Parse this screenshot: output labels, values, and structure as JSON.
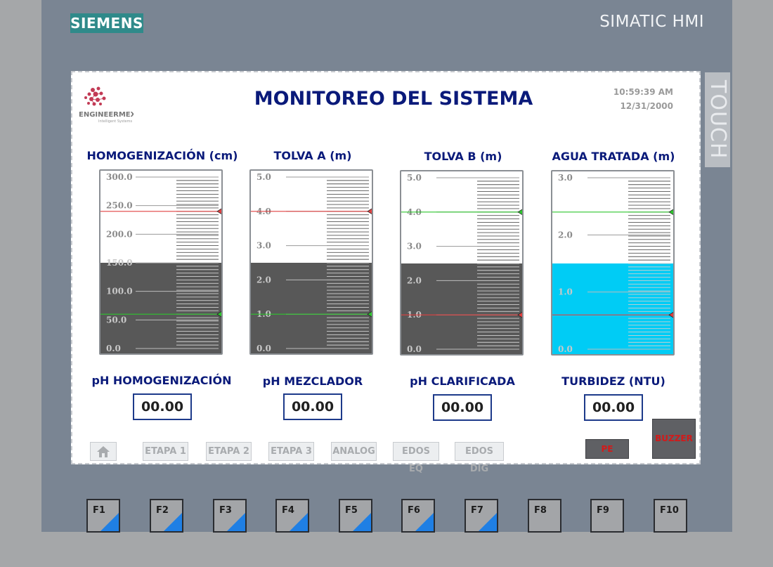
{
  "device": {
    "brand": "SIEMENS",
    "model": "SIMATIC HMI",
    "side_label": "TOUCH"
  },
  "screen": {
    "logo_text": "ENGINEERMEX",
    "logo_subtext": "Intelligent Systems",
    "title": "MONITOREO DEL SISTEMA",
    "time": "10:59:39 AM",
    "date": "12/31/2000"
  },
  "tanks": [
    {
      "title": "HOMOGENIZACIÓN (cm)",
      "ticks": [
        "300.0",
        "250.0",
        "200.0",
        "150.0",
        "100.0",
        "50.0",
        "0.0"
      ],
      "max": 300,
      "level": 150,
      "fill_color": "#585858",
      "marker_high": 240,
      "marker_high_color": "#e04040",
      "marker_low": 60,
      "marker_low_color": "#2ec62e"
    },
    {
      "title": "TOLVA A (m)",
      "ticks": [
        "5.0",
        "4.0",
        "3.0",
        "2.0",
        "1.0",
        "0.0"
      ],
      "max": 5,
      "level": 2.5,
      "fill_color": "#585858",
      "marker_high": 4.0,
      "marker_high_color": "#e04040",
      "marker_low": 1.0,
      "marker_low_color": "#2ec62e"
    },
    {
      "title": "TOLVA B (m)",
      "ticks": [
        "5.0",
        "4.0",
        "3.0",
        "2.0",
        "1.0",
        "0.0"
      ],
      "max": 5,
      "level": 2.5,
      "fill_color": "#585858",
      "marker_high": 4.0,
      "marker_high_color": "#2ec62e",
      "marker_low": 1.0,
      "marker_low_color": "#e04040"
    },
    {
      "title": "AGUA TRATADA (m)",
      "ticks": [
        "3.0",
        "2.0",
        "1.0",
        "0.0"
      ],
      "max": 3,
      "level": 1.5,
      "fill_color": "#00ccf5",
      "marker_high": 2.4,
      "marker_high_color": "#2ec62e",
      "marker_low": 0.6,
      "marker_low_color": "#e04040"
    }
  ],
  "ph": [
    {
      "label": "pH HOMOGENIZACIÓN",
      "value": "00.00"
    },
    {
      "label": "pH MEZCLADOR",
      "value": "00.00"
    },
    {
      "label": "pH CLARIFICADA",
      "value": "00.00"
    },
    {
      "label": "TURBIDEZ (NTU)",
      "value": "00.00"
    }
  ],
  "nav": {
    "home_icon": "home-icon",
    "buttons": [
      "ETAPA 1",
      "ETAPA 2",
      "ETAPA 3",
      "ANALOG",
      "EDOS EQ",
      "EDOS DIG"
    ],
    "pe": "PE",
    "buzzer": "BUZZER"
  },
  "fkeys": [
    "F1",
    "F2",
    "F3",
    "F4",
    "F5",
    "F6",
    "F7",
    "F8",
    "F9",
    "F10"
  ],
  "fkey_marked": [
    true,
    true,
    true,
    true,
    true,
    true,
    true,
    false,
    false,
    false
  ],
  "colors": {
    "title": "#0a1a7a",
    "accent": "#1f7fe4",
    "alarm": "#d21a1a"
  }
}
